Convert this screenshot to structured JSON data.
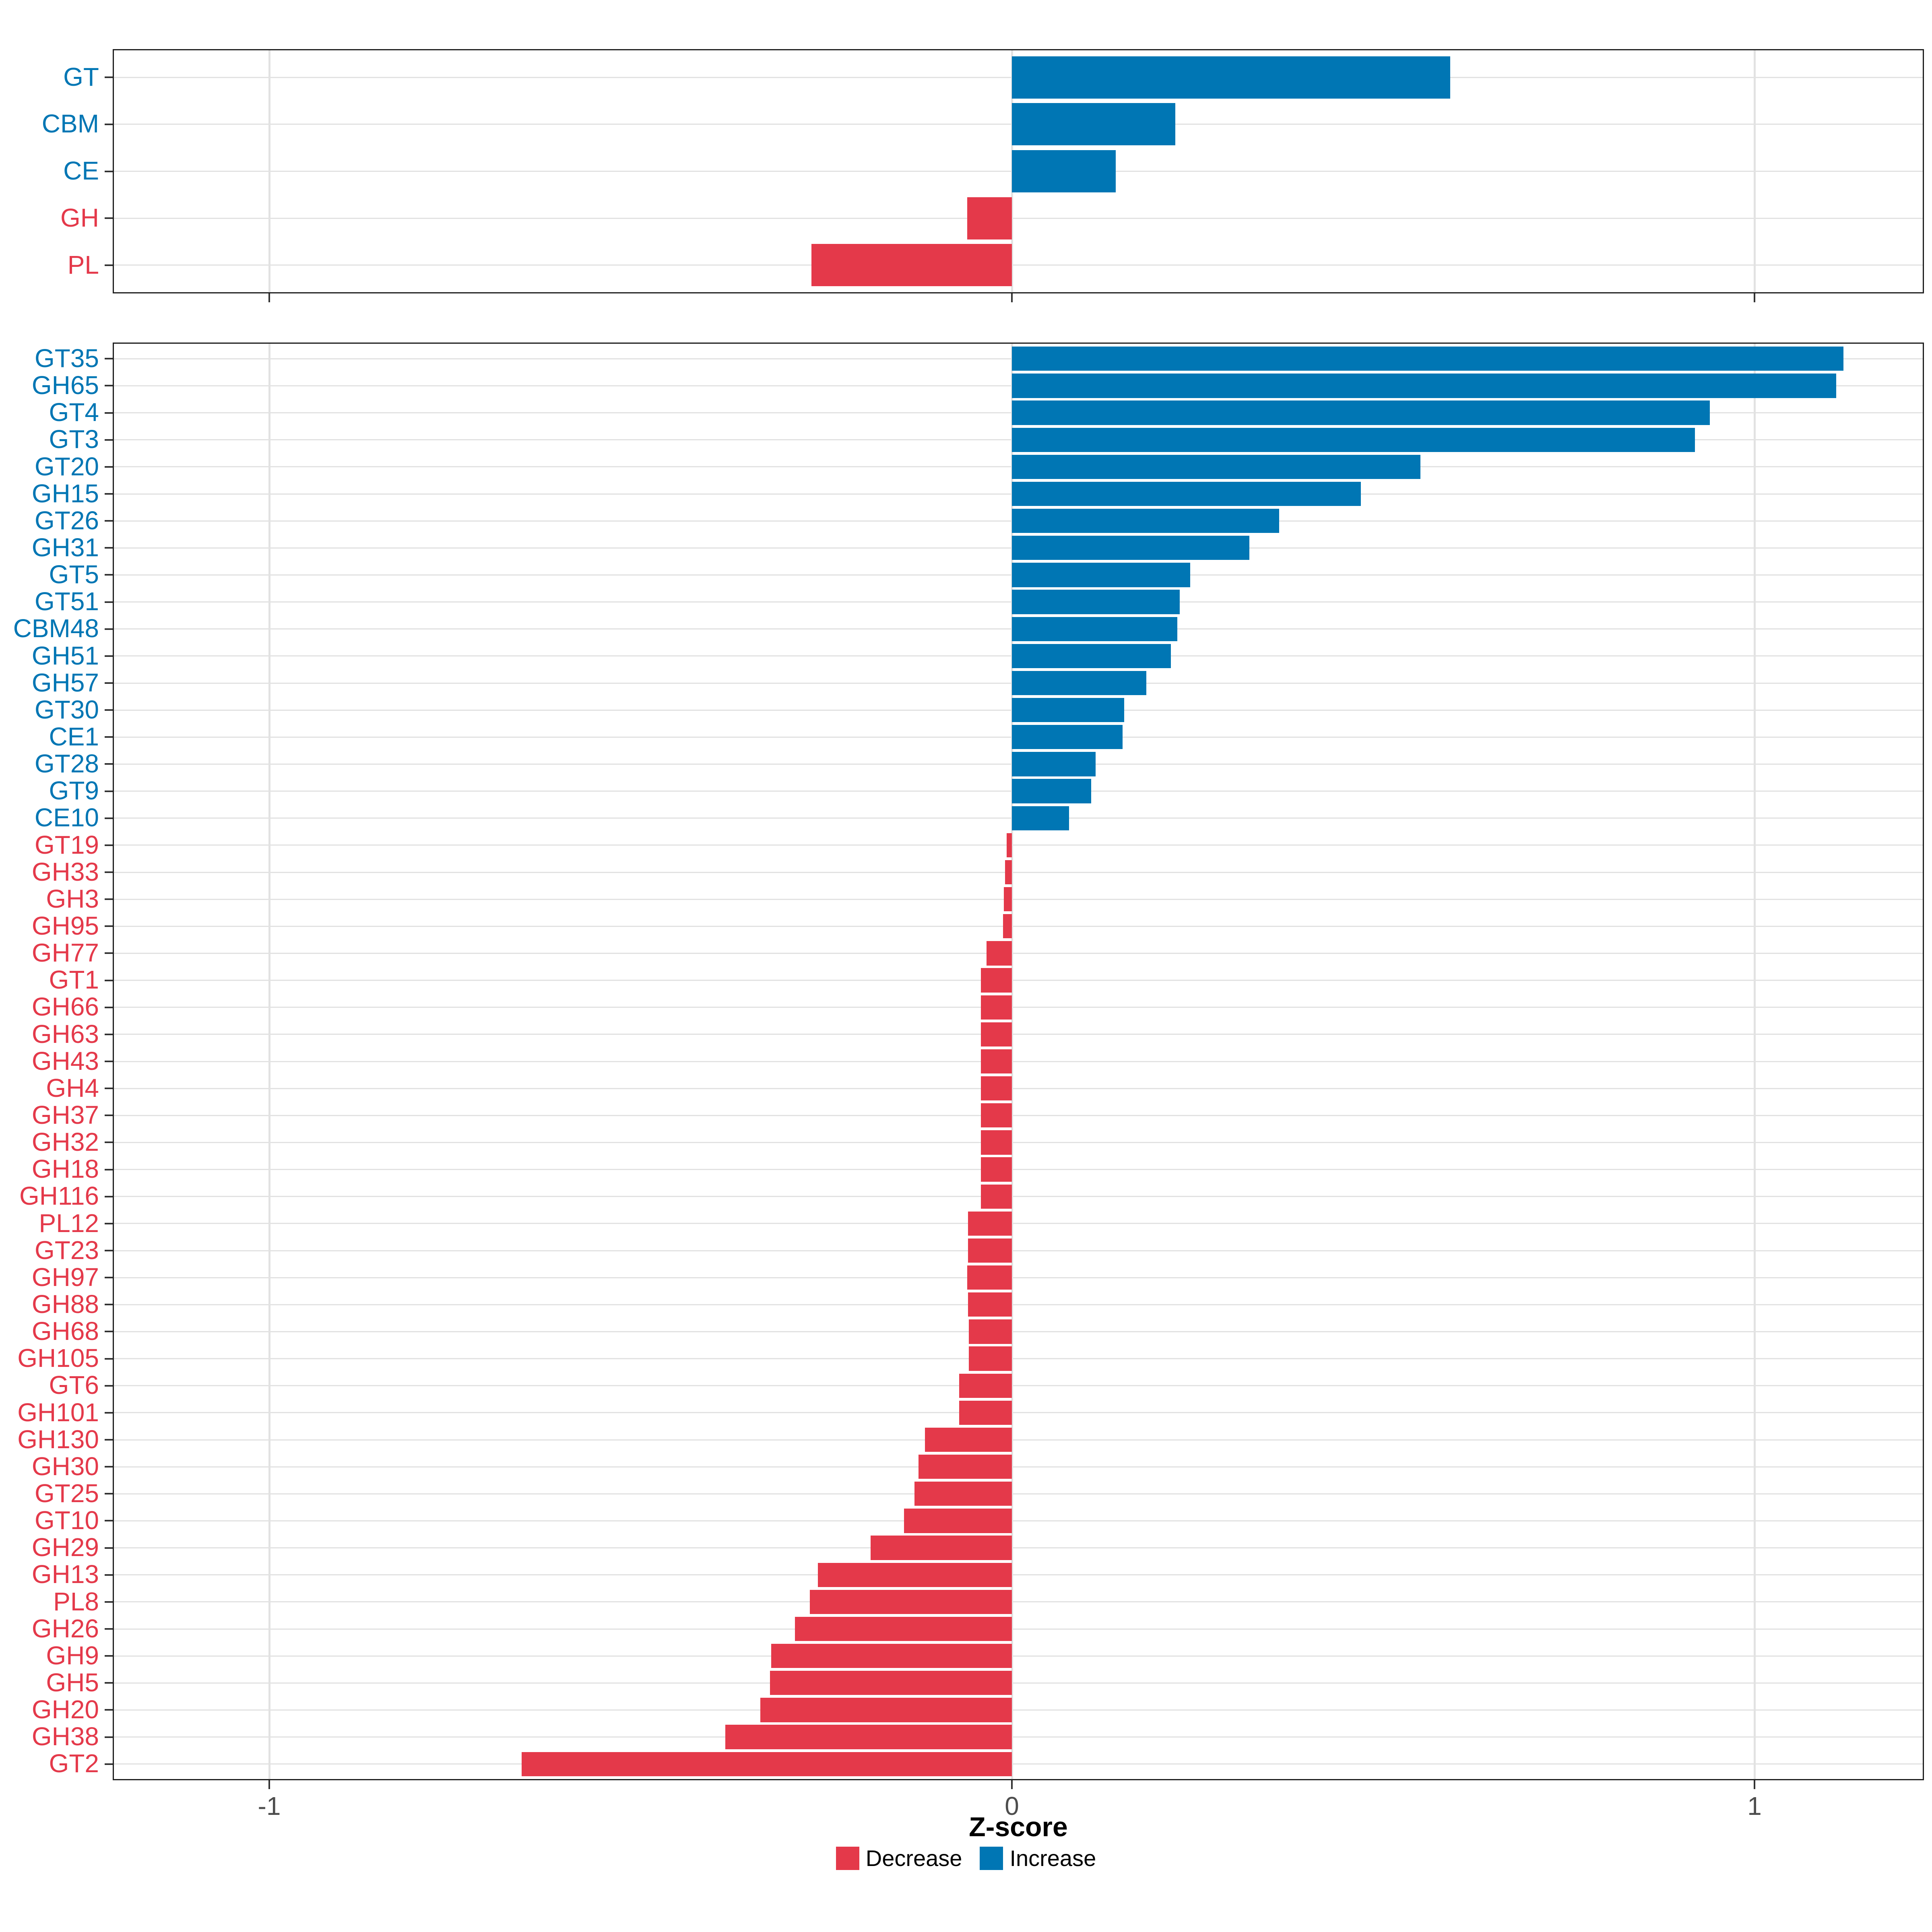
{
  "chart_data": {
    "type": "bar",
    "orientation": "horizontal",
    "title": "",
    "xlabel": "Z-score",
    "x_ticks": [
      "-1",
      "0",
      "1"
    ],
    "x_tick_values": [
      -1,
      0,
      1
    ],
    "xlim": [
      -1.21,
      1.23
    ],
    "grid": true,
    "legend_position": "bottom",
    "colors": {
      "increase": "#0076B4",
      "decrease": "#E4394A",
      "gridline": "#e2e2e2",
      "axis_text": "#4d4d4d",
      "border": "#1f1f1f"
    },
    "legend": [
      {
        "label": "Decrease",
        "key": "decrease"
      },
      {
        "label": "Increase",
        "key": "increase"
      }
    ],
    "panels": [
      {
        "name": "cazyme-class",
        "categories": [
          "GT",
          "CBM",
          "CE",
          "GH",
          "PL"
        ],
        "values": [
          0.59,
          0.22,
          0.14,
          -0.06,
          -0.27
        ]
      },
      {
        "name": "cazyme-family",
        "categories": [
          "GT35",
          "GH65",
          "GT4",
          "GT3",
          "GT20",
          "GH15",
          "GT26",
          "GH31",
          "GT5",
          "GT51",
          "CBM48",
          "GH51",
          "GH57",
          "GT30",
          "CE1",
          "GT28",
          "GT9",
          "CE10",
          "GT19",
          "GH33",
          "GH3",
          "GH95",
          "GH77",
          "GT1",
          "GH66",
          "GH63",
          "GH43",
          "GH4",
          "GH37",
          "GH32",
          "GH18",
          "GH116",
          "PL12",
          "GT23",
          "GH97",
          "GH88",
          "GH68",
          "GH105",
          "GT6",
          "GH101",
          "GH130",
          "GH30",
          "GT25",
          "GT10",
          "GH29",
          "GH13",
          "PL8",
          "GH26",
          "GH9",
          "GH5",
          "GH20",
          "GH38",
          "GT2"
        ],
        "values": [
          1.12,
          1.11,
          0.94,
          0.92,
          0.55,
          0.47,
          0.36,
          0.32,
          0.24,
          0.226,
          0.223,
          0.214,
          0.181,
          0.151,
          0.149,
          0.113,
          0.107,
          0.077,
          -0.007,
          -0.009,
          -0.011,
          -0.012,
          -0.034,
          -0.042,
          -0.042,
          -0.042,
          -0.042,
          -0.042,
          -0.042,
          -0.042,
          -0.042,
          -0.042,
          -0.059,
          -0.059,
          -0.06,
          -0.059,
          -0.058,
          -0.058,
          -0.071,
          -0.071,
          -0.117,
          -0.126,
          -0.131,
          -0.145,
          -0.19,
          -0.261,
          -0.272,
          -0.292,
          -0.324,
          -0.326,
          -0.339,
          -0.386,
          -0.66
        ]
      }
    ]
  }
}
